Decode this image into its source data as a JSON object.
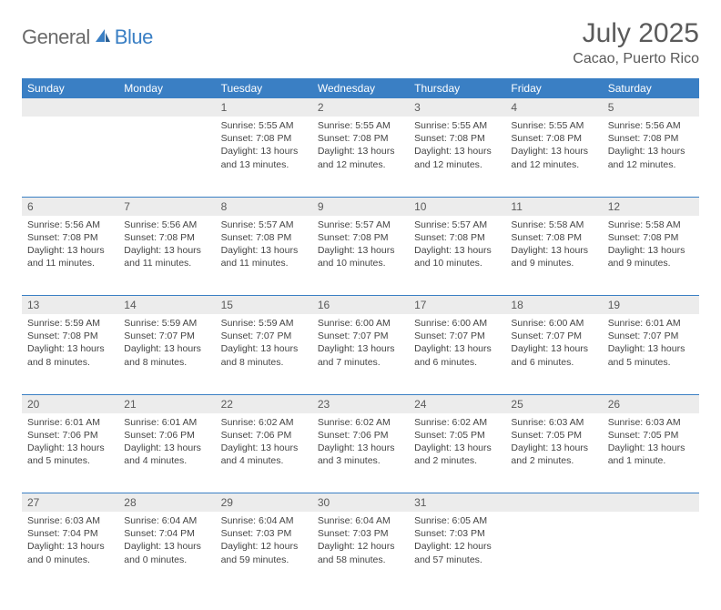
{
  "logo": {
    "text1": "General",
    "text2": "Blue"
  },
  "title": "July 2025",
  "location": "Cacao, Puerto Rico",
  "colors": {
    "header_bg": "#3a7fc4",
    "header_text": "#ffffff",
    "daynum_bg": "#ececec",
    "text": "#5a5a5a",
    "cell_text": "#444444",
    "border": "#3a7fc4"
  },
  "day_headers": [
    "Sunday",
    "Monday",
    "Tuesday",
    "Wednesday",
    "Thursday",
    "Friday",
    "Saturday"
  ],
  "weeks": [
    [
      null,
      null,
      {
        "n": "1",
        "sr": "5:55 AM",
        "ss": "7:08 PM",
        "dl": "13 hours and 13 minutes."
      },
      {
        "n": "2",
        "sr": "5:55 AM",
        "ss": "7:08 PM",
        "dl": "13 hours and 12 minutes."
      },
      {
        "n": "3",
        "sr": "5:55 AM",
        "ss": "7:08 PM",
        "dl": "13 hours and 12 minutes."
      },
      {
        "n": "4",
        "sr": "5:55 AM",
        "ss": "7:08 PM",
        "dl": "13 hours and 12 minutes."
      },
      {
        "n": "5",
        "sr": "5:56 AM",
        "ss": "7:08 PM",
        "dl": "13 hours and 12 minutes."
      }
    ],
    [
      {
        "n": "6",
        "sr": "5:56 AM",
        "ss": "7:08 PM",
        "dl": "13 hours and 11 minutes."
      },
      {
        "n": "7",
        "sr": "5:56 AM",
        "ss": "7:08 PM",
        "dl": "13 hours and 11 minutes."
      },
      {
        "n": "8",
        "sr": "5:57 AM",
        "ss": "7:08 PM",
        "dl": "13 hours and 11 minutes."
      },
      {
        "n": "9",
        "sr": "5:57 AM",
        "ss": "7:08 PM",
        "dl": "13 hours and 10 minutes."
      },
      {
        "n": "10",
        "sr": "5:57 AM",
        "ss": "7:08 PM",
        "dl": "13 hours and 10 minutes."
      },
      {
        "n": "11",
        "sr": "5:58 AM",
        "ss": "7:08 PM",
        "dl": "13 hours and 9 minutes."
      },
      {
        "n": "12",
        "sr": "5:58 AM",
        "ss": "7:08 PM",
        "dl": "13 hours and 9 minutes."
      }
    ],
    [
      {
        "n": "13",
        "sr": "5:59 AM",
        "ss": "7:08 PM",
        "dl": "13 hours and 8 minutes."
      },
      {
        "n": "14",
        "sr": "5:59 AM",
        "ss": "7:07 PM",
        "dl": "13 hours and 8 minutes."
      },
      {
        "n": "15",
        "sr": "5:59 AM",
        "ss": "7:07 PM",
        "dl": "13 hours and 8 minutes."
      },
      {
        "n": "16",
        "sr": "6:00 AM",
        "ss": "7:07 PM",
        "dl": "13 hours and 7 minutes."
      },
      {
        "n": "17",
        "sr": "6:00 AM",
        "ss": "7:07 PM",
        "dl": "13 hours and 6 minutes."
      },
      {
        "n": "18",
        "sr": "6:00 AM",
        "ss": "7:07 PM",
        "dl": "13 hours and 6 minutes."
      },
      {
        "n": "19",
        "sr": "6:01 AM",
        "ss": "7:07 PM",
        "dl": "13 hours and 5 minutes."
      }
    ],
    [
      {
        "n": "20",
        "sr": "6:01 AM",
        "ss": "7:06 PM",
        "dl": "13 hours and 5 minutes."
      },
      {
        "n": "21",
        "sr": "6:01 AM",
        "ss": "7:06 PM",
        "dl": "13 hours and 4 minutes."
      },
      {
        "n": "22",
        "sr": "6:02 AM",
        "ss": "7:06 PM",
        "dl": "13 hours and 4 minutes."
      },
      {
        "n": "23",
        "sr": "6:02 AM",
        "ss": "7:06 PM",
        "dl": "13 hours and 3 minutes."
      },
      {
        "n": "24",
        "sr": "6:02 AM",
        "ss": "7:05 PM",
        "dl": "13 hours and 2 minutes."
      },
      {
        "n": "25",
        "sr": "6:03 AM",
        "ss": "7:05 PM",
        "dl": "13 hours and 2 minutes."
      },
      {
        "n": "26",
        "sr": "6:03 AM",
        "ss": "7:05 PM",
        "dl": "13 hours and 1 minute."
      }
    ],
    [
      {
        "n": "27",
        "sr": "6:03 AM",
        "ss": "7:04 PM",
        "dl": "13 hours and 0 minutes."
      },
      {
        "n": "28",
        "sr": "6:04 AM",
        "ss": "7:04 PM",
        "dl": "13 hours and 0 minutes."
      },
      {
        "n": "29",
        "sr": "6:04 AM",
        "ss": "7:03 PM",
        "dl": "12 hours and 59 minutes."
      },
      {
        "n": "30",
        "sr": "6:04 AM",
        "ss": "7:03 PM",
        "dl": "12 hours and 58 minutes."
      },
      {
        "n": "31",
        "sr": "6:05 AM",
        "ss": "7:03 PM",
        "dl": "12 hours and 57 minutes."
      },
      null,
      null
    ]
  ],
  "labels": {
    "sunrise": "Sunrise:",
    "sunset": "Sunset:",
    "daylight": "Daylight:"
  }
}
